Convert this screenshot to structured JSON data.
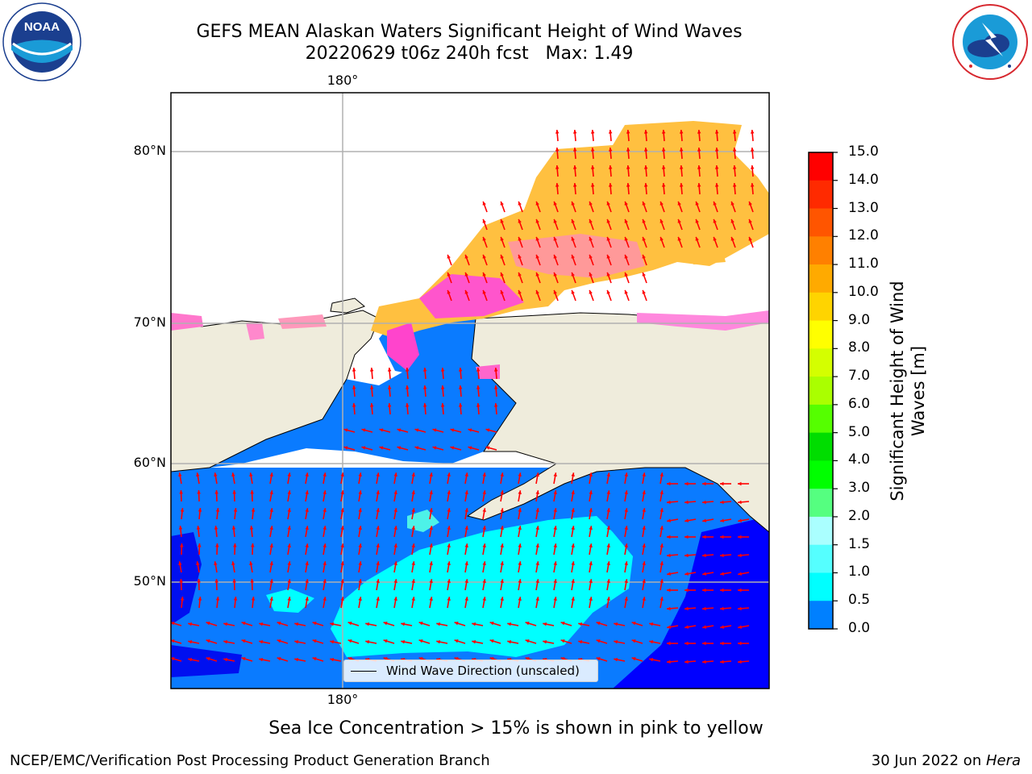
{
  "title": {
    "line1": "GEFS MEAN Alaskan Waters Significant Height of Wind Waves",
    "line2": "20220629 t06z 240h fcst   Max: 1.49"
  },
  "logos": {
    "left": "NOAA",
    "left_ring": "NATIONAL OCEANIC AND ATMOSPHERIC ADMINISTRATION · U.S. DEPARTMENT OF COMMERCE",
    "right_ring": "NATIONAL WEATHER SERVICE"
  },
  "map": {
    "lon_label_top": "180°",
    "lon_label_bottom": "180°",
    "lat_labels": [
      "80°N",
      "70°N",
      "60°N",
      "50°N"
    ],
    "legend_label": "Wind Wave Direction (unscaled)",
    "colors": {
      "land": "#efecdc",
      "ocean_low": "#0000ff",
      "ocean_mid": "#0a7bff",
      "ocean_high": "#00ffff",
      "ice_orange": "#ffc040",
      "ice_pink": "#ff66cc",
      "arrow": "#ff0000"
    }
  },
  "colorbar": {
    "title_line1": "Significant Height of Wind",
    "title_line2": "Waves [m]",
    "ticks": [
      "15.0",
      "14.0",
      "13.0",
      "12.0",
      "11.0",
      "10.0",
      "9.0",
      "8.0",
      "7.0",
      "6.0",
      "5.0",
      "4.0",
      "3.0",
      "2.0",
      "1.5",
      "1.0",
      "0.5",
      "0.0"
    ],
    "colors_top_to_bottom": [
      "#ff0000",
      "#ff2a00",
      "#ff5500",
      "#ff8000",
      "#ffaa00",
      "#ffd400",
      "#ffff00",
      "#d4ff00",
      "#aaff00",
      "#55ff00",
      "#00dd00",
      "#00ff00",
      "#55ff80",
      "#aaffff",
      "#55ffff",
      "#00ffff",
      "#0080ff",
      "#0000ff"
    ]
  },
  "caption": "Sea Ice Concentration > 15% is shown in pink to yellow",
  "footer": {
    "left": "NCEP/EMC/Verification Post Processing Product Generation Branch",
    "right_prefix": "30 Jun 2022 on ",
    "right_machine": "Hera"
  }
}
